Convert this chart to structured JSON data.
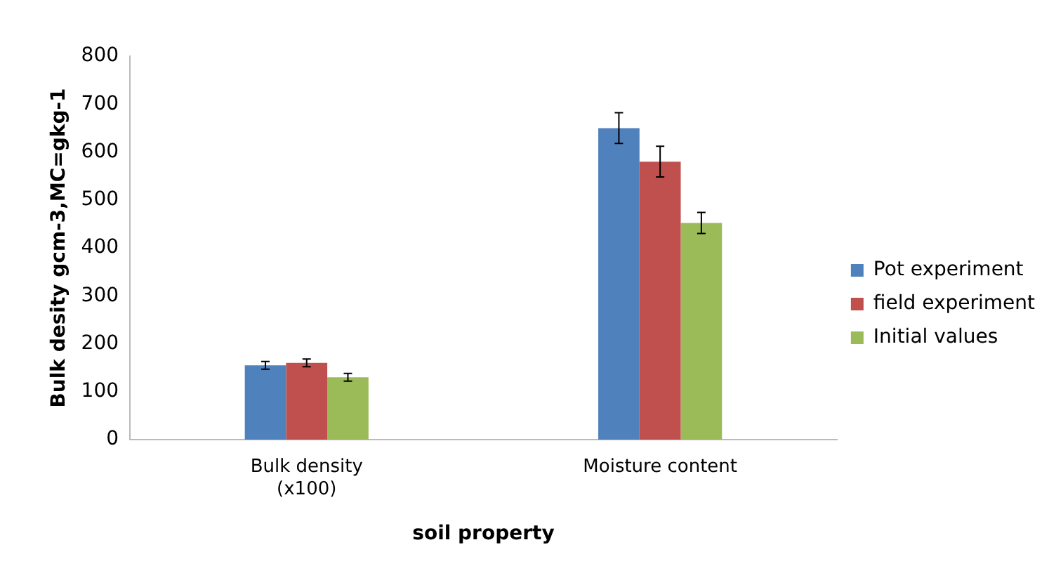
{
  "chart_data": {
    "type": "bar",
    "xlabel": "soil property",
    "ylabel": "Bulk desity gcm-3,MC=gkg-1",
    "categories": [
      "Bulk density\n(x100)",
      "Moisture content"
    ],
    "series": [
      {
        "name": "Pot experiment",
        "color": "#4f81bd",
        "values": [
          155,
          650
        ],
        "errors": [
          8,
          32
        ]
      },
      {
        "name": "field experiment",
        "color": "#c0504d",
        "values": [
          160,
          580
        ],
        "errors": [
          8,
          32
        ]
      },
      {
        "name": "Initial values",
        "color": "#9bbb59",
        "values": [
          130,
          452
        ],
        "errors": [
          8,
          22
        ]
      }
    ],
    "ylim": [
      0,
      800
    ],
    "yticks": [
      0,
      100,
      200,
      300,
      400,
      500,
      600,
      700,
      800
    ],
    "grid": false,
    "legend": "right"
  }
}
